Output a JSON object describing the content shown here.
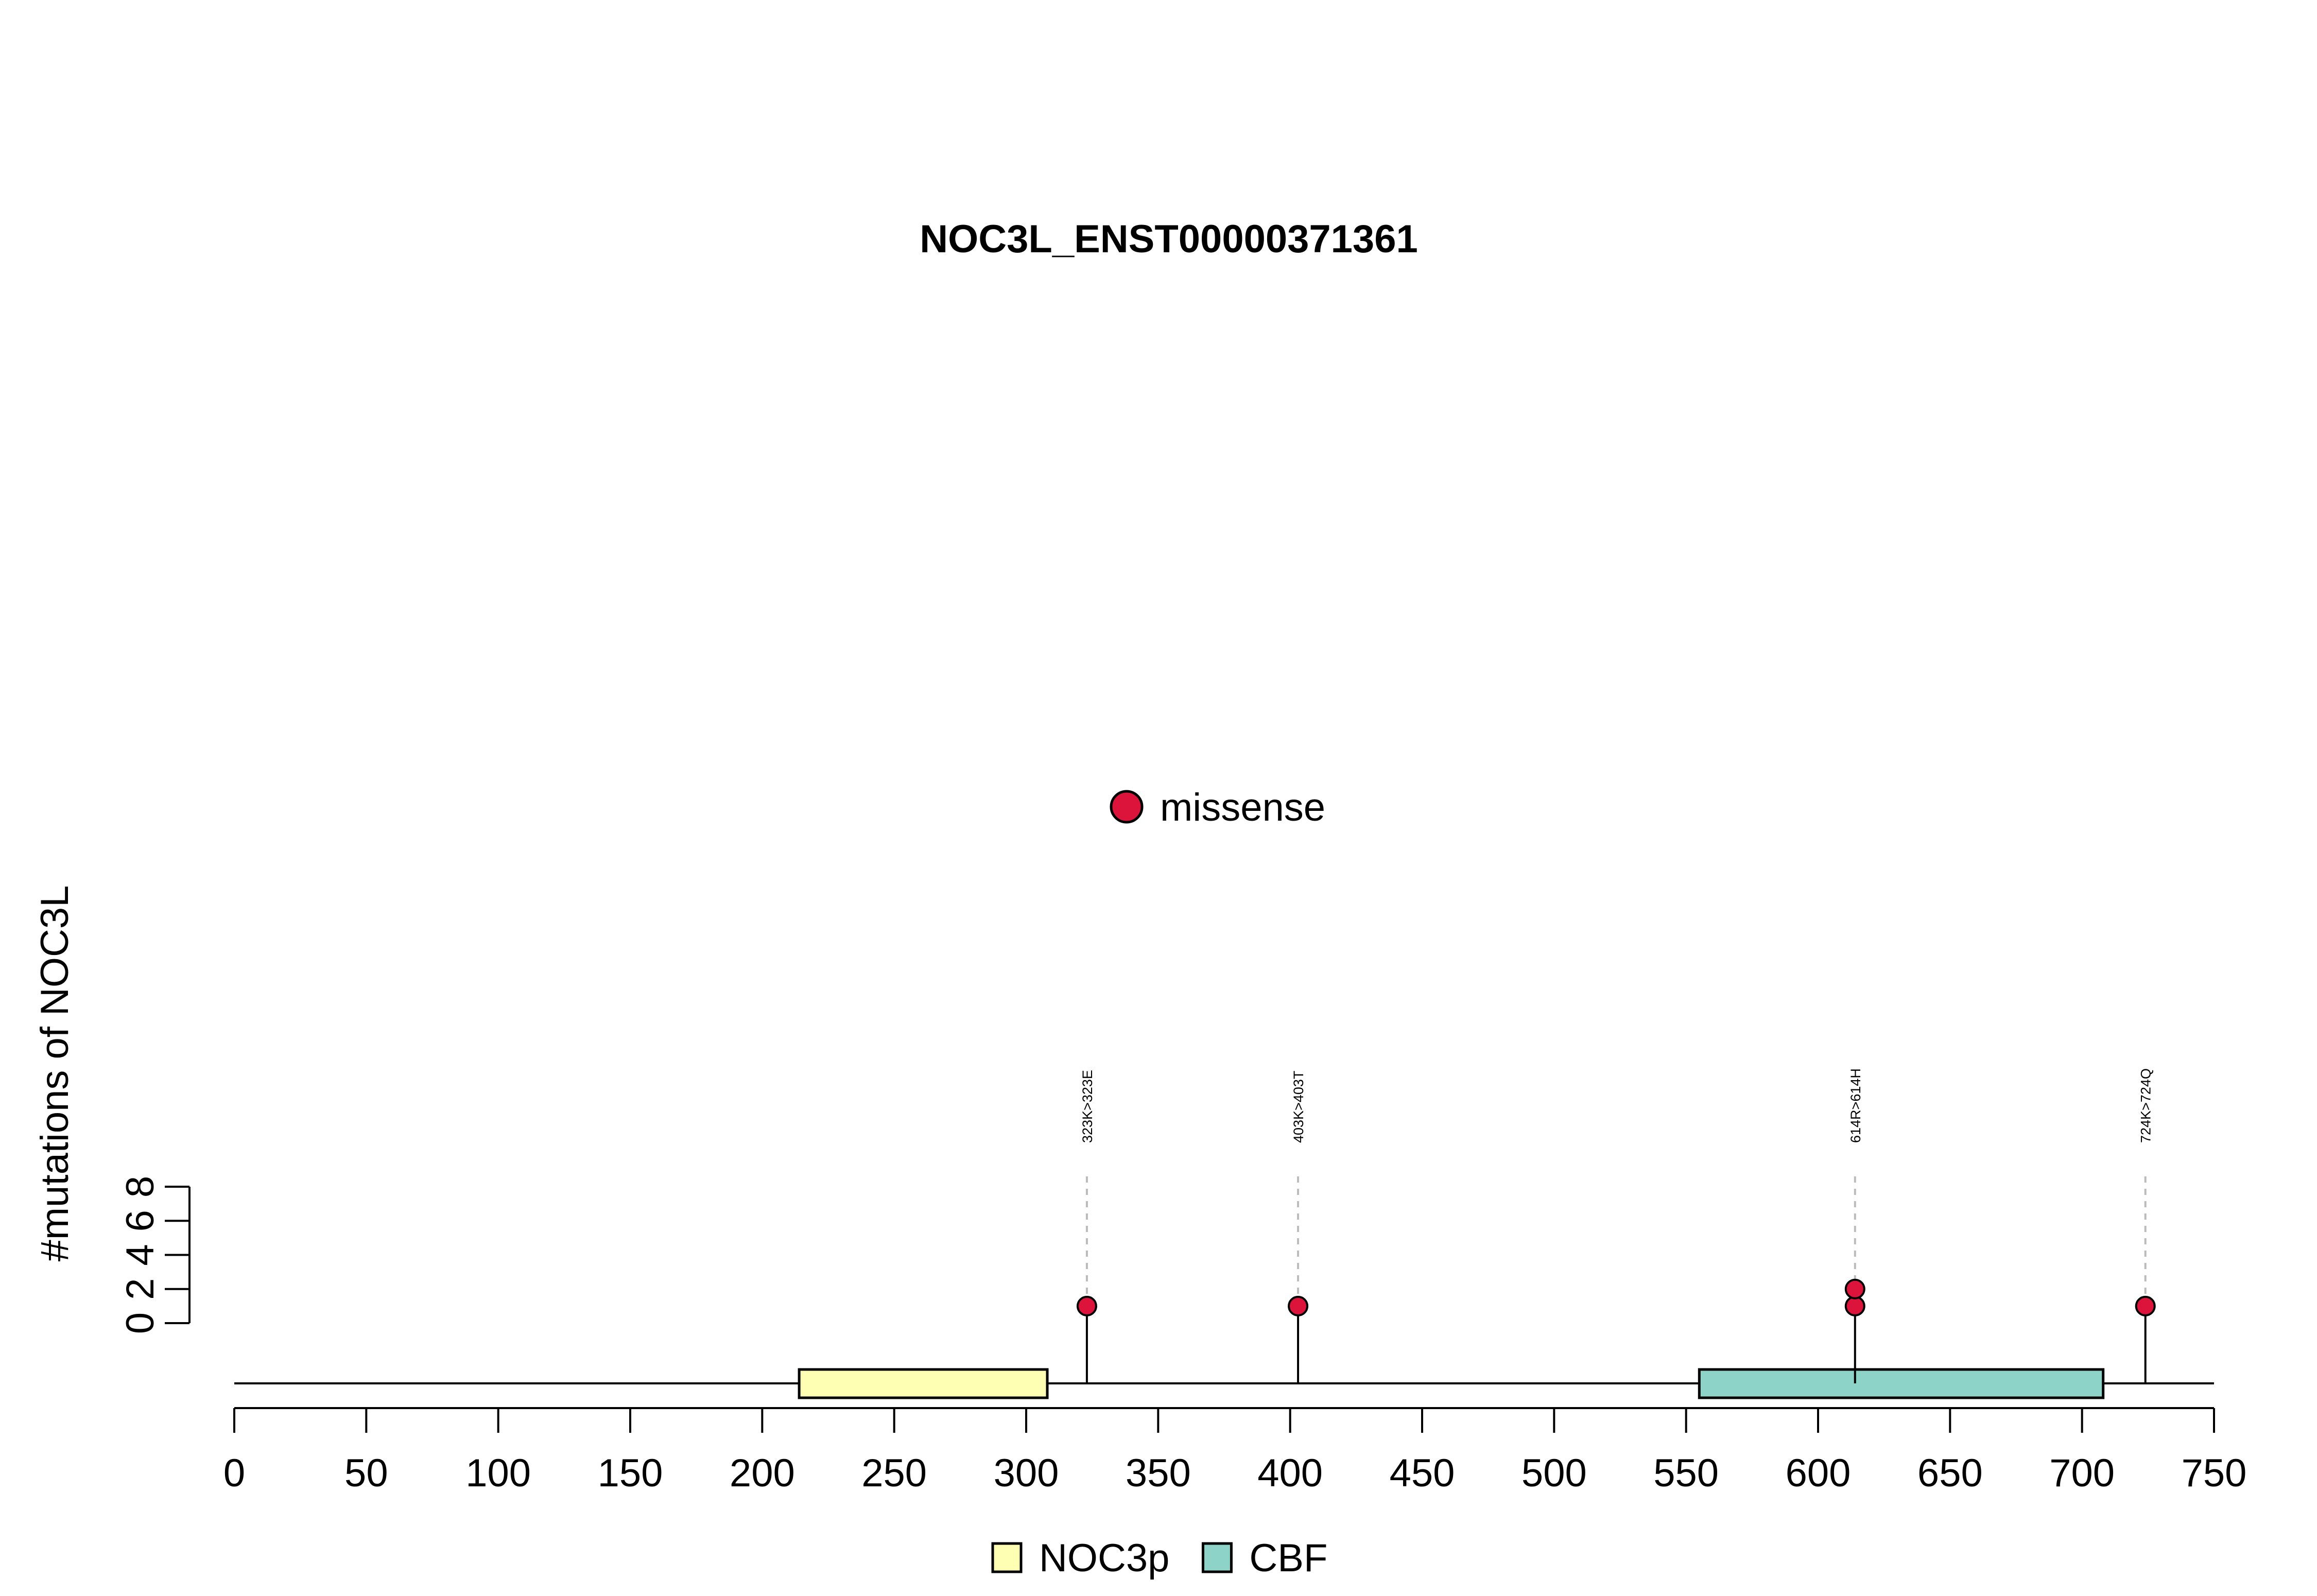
{
  "chart_data": {
    "type": "lollipop",
    "title": "NOC3L_ENST00000371361",
    "xlabel": "",
    "ylabel": "#mutations of NOC3L",
    "xlim": [
      0,
      750
    ],
    "x_ticks": [
      0,
      50,
      100,
      150,
      200,
      250,
      300,
      350,
      400,
      450,
      500,
      550,
      600,
      650,
      700,
      750
    ],
    "ylim": [
      0,
      8
    ],
    "y_ticks": [
      0,
      2,
      4,
      6,
      8
    ],
    "protein_length": 753,
    "domains": [
      {
        "name": "NOC3p",
        "start": 214,
        "end": 308,
        "color": "#FFFFB3"
      },
      {
        "name": "CBF",
        "start": 555,
        "end": 708,
        "color": "#8DD3C7"
      }
    ],
    "mutations": [
      {
        "position": 323,
        "label": "323K>323E",
        "count": 1,
        "type": "missense"
      },
      {
        "position": 403,
        "label": "403K>403T",
        "count": 1,
        "type": "missense"
      },
      {
        "position": 614,
        "label": "614R>614H",
        "count": 2,
        "type": "missense"
      },
      {
        "position": 724,
        "label": "724K>724Q",
        "count": 1,
        "type": "missense"
      }
    ],
    "mutation_legend": [
      {
        "label": "missense",
        "color": "#DC143C"
      }
    ],
    "domain_legend": [
      {
        "label": "NOC3p",
        "color": "#FFFFB3"
      },
      {
        "label": "CBF",
        "color": "#8DD3C7"
      }
    ],
    "grid": false
  }
}
